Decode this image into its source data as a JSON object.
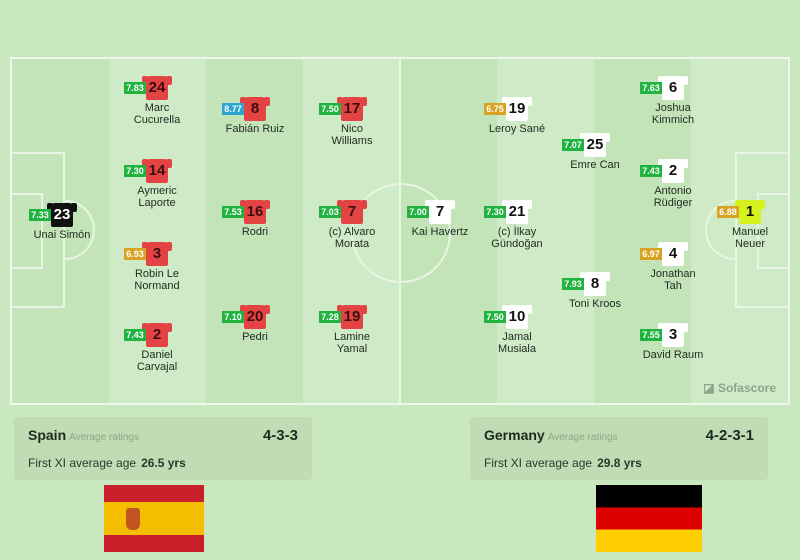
{
  "colors": {
    "spain_shirt": "#e44343",
    "spain_gk": "#111111",
    "germany_shirt": "#ffffff",
    "germany_gk": "#d6f21c",
    "rating_green": "#20b33f",
    "rating_blue": "#2ba6d3",
    "rating_orange": "#d8a322"
  },
  "branding": {
    "logo": "Sofascore"
  },
  "home": {
    "name": "Spain",
    "avg_label": "Average ratings",
    "formation": "4-3-3",
    "age_label": "First XI average age",
    "age_value": "26.5 yrs",
    "flag": "spain-flag",
    "players": [
      {
        "number": "23",
        "name": "Unai Simón",
        "rating": "7.33"
      },
      {
        "number": "24",
        "name": "Marc Cucurella",
        "rating": "7.83"
      },
      {
        "number": "14",
        "name": "Aymeric Laporte",
        "rating": "7.30"
      },
      {
        "number": "3",
        "name": "Robin Le Normand",
        "rating": "6.93"
      },
      {
        "number": "2",
        "name": "Daniel Carvajal",
        "rating": "7.43"
      },
      {
        "number": "8",
        "name": "Fabián Ruiz",
        "rating": "8.77"
      },
      {
        "number": "16",
        "name": "Rodri",
        "rating": "7.53"
      },
      {
        "number": "20",
        "name": "Pedri",
        "rating": "7.10"
      },
      {
        "number": "17",
        "name": "Nico Williams",
        "rating": "7.50"
      },
      {
        "number": "7",
        "name": "(c) Alvaro Morata",
        "rating": "7.03"
      },
      {
        "number": "19",
        "name": "Lamine Yamal",
        "rating": "7.28"
      }
    ]
  },
  "away": {
    "name": "Germany",
    "avg_label": "Average ratings",
    "formation": "4-2-3-1",
    "age_label": "First XI average age",
    "age_value": "29.8 yrs",
    "flag": "germany-flag",
    "players": [
      {
        "number": "1",
        "name": "Manuel Neuer",
        "rating": "6.88"
      },
      {
        "number": "6",
        "name": "Joshua Kimmich",
        "rating": "7.63"
      },
      {
        "number": "2",
        "name": "Antonio Rüdiger",
        "rating": "7.43"
      },
      {
        "number": "4",
        "name": "Jonathan Tah",
        "rating": "6.97"
      },
      {
        "number": "3",
        "name": "David Raum",
        "rating": "7.55"
      },
      {
        "number": "25",
        "name": "Emre Can",
        "rating": "7.07"
      },
      {
        "number": "8",
        "name": "Toni Kroos",
        "rating": "7.93"
      },
      {
        "number": "19",
        "name": "Leroy Sané",
        "rating": "6.75"
      },
      {
        "number": "21",
        "name": "(c) İlkay Gündoğan",
        "rating": "7.30"
      },
      {
        "number": "10",
        "name": "Jamal Musiala",
        "rating": "7.50"
      },
      {
        "number": "7",
        "name": "Kai Havertz",
        "rating": "7.00"
      }
    ]
  }
}
